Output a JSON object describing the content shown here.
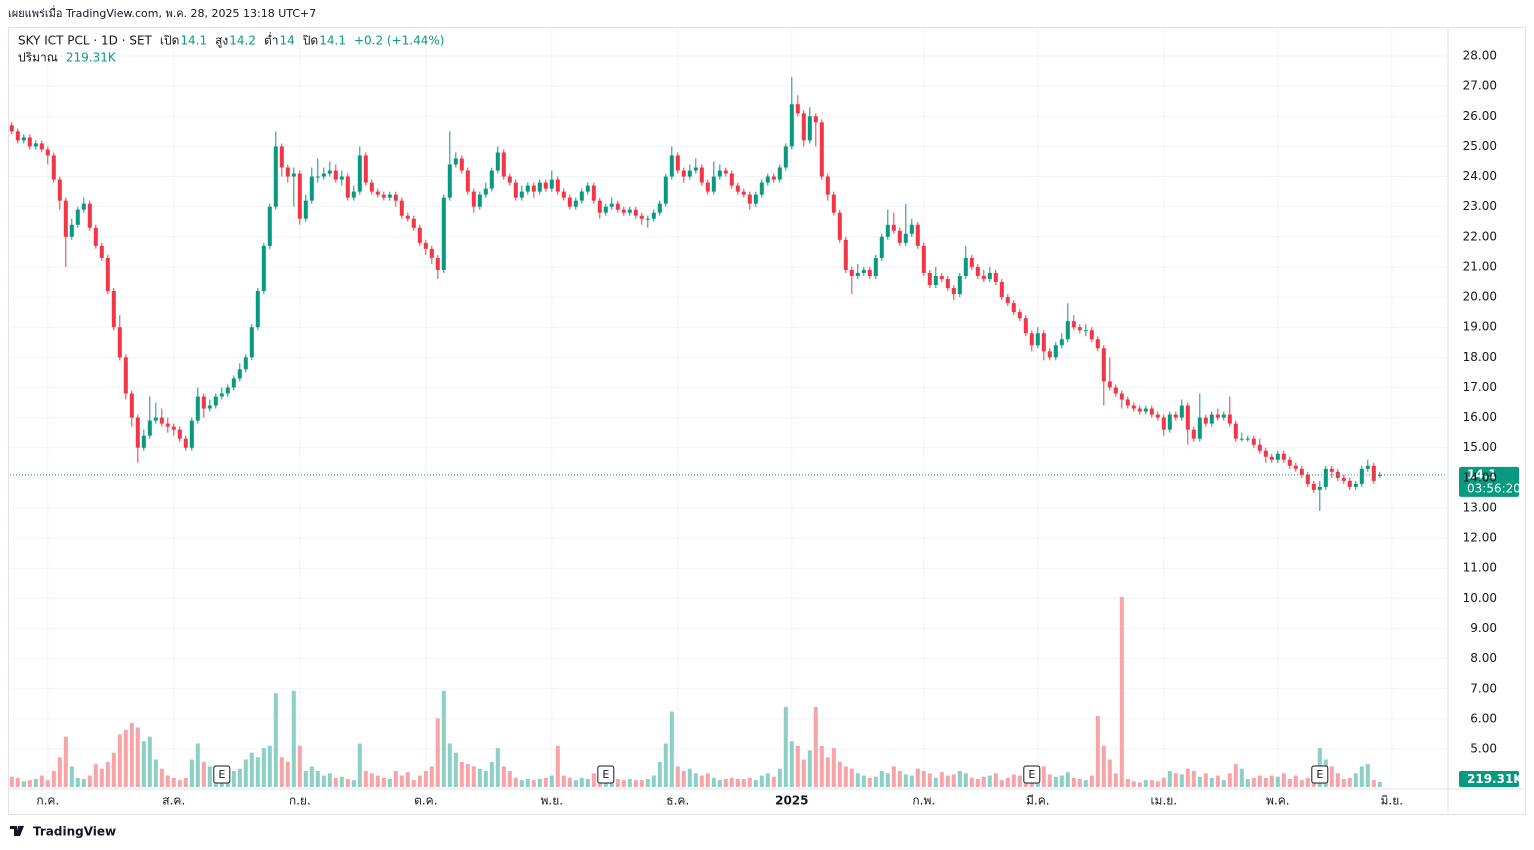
{
  "header": {
    "published": "เผยแพร่เมื่อ TradingView.com, พ.ค. 28, 2025 13:18 UTC+7"
  },
  "footer": {
    "brand": "TradingView"
  },
  "chart_data": {
    "type": "candlestick",
    "legend": {
      "symbol": "SKY ICT PCL · 1D · SET",
      "open_label": "เปิด",
      "high_label": "สูง",
      "low_label": "ต่ำ",
      "close_label": "ปิด",
      "change": "+0.2 (+1.44%)",
      "volume_label": "ปริมาณ",
      "volume_text": "219.31K"
    },
    "countdown": "03:56:20",
    "up_color": "#089981",
    "down_color": "#f23645",
    "up_volume_color": "#8ccfc4",
    "down_volume_color": "#f7a4a8",
    "grid": true,
    "xlim": [
      -0.3,
      239.2
    ],
    "xticks": [
      {
        "value": 6,
        "label": "ก.ค."
      },
      {
        "value": 27,
        "label": "ส.ค."
      },
      {
        "value": 48,
        "label": "ก.ย."
      },
      {
        "value": 69,
        "label": "ต.ค."
      },
      {
        "value": 90,
        "label": "พ.ย."
      },
      {
        "value": 111,
        "label": "ธ.ค."
      },
      {
        "value": 130,
        "label": "2025"
      },
      {
        "value": 152,
        "label": "ก.พ."
      },
      {
        "value": 171,
        "label": "มี.ค."
      },
      {
        "value": 192,
        "label": "เม.ย."
      },
      {
        "value": 211,
        "label": "พ.ค."
      },
      {
        "value": 230,
        "label": "มิ.ย."
      }
    ],
    "ylim": [
      3.74,
      28.93
    ],
    "yticks": [
      {
        "value": 5,
        "label": "5.00"
      },
      {
        "value": 6,
        "label": "6.00"
      },
      {
        "value": 7,
        "label": "7.00"
      },
      {
        "value": 8,
        "label": "8.00"
      },
      {
        "value": 9,
        "label": "9.00"
      },
      {
        "value": 10,
        "label": "10.00"
      },
      {
        "value": 11,
        "label": "11.00"
      },
      {
        "value": 12,
        "label": "12.00"
      },
      {
        "value": 13,
        "label": "13.00"
      },
      {
        "value": 14,
        "label": "14.00"
      },
      {
        "value": 15,
        "label": "15.00"
      },
      {
        "value": 16,
        "label": "16.00"
      },
      {
        "value": 17,
        "label": "17.00"
      },
      {
        "value": 18,
        "label": "18.00"
      },
      {
        "value": 19,
        "label": "19.00"
      },
      {
        "value": 20,
        "label": "20.00"
      },
      {
        "value": 21,
        "label": "21.00"
      },
      {
        "value": 22,
        "label": "22.00"
      },
      {
        "value": 23,
        "label": "23.00"
      },
      {
        "value": 24,
        "label": "24.00"
      },
      {
        "value": 25,
        "label": "25.00"
      },
      {
        "value": 26,
        "label": "26.00"
      },
      {
        "value": 27,
        "label": "27.00"
      },
      {
        "value": 28,
        "label": "28.00"
      }
    ],
    "volume_lim": [
      0,
      9000
    ],
    "events": [
      {
        "label": "E",
        "x": 35
      },
      {
        "label": "E",
        "x": 99
      },
      {
        "label": "E",
        "x": 170
      },
      {
        "label": "E",
        "x": 218
      }
    ],
    "open": [
      25.7,
      25.5,
      25.2,
      25.3,
      25.0,
      25.1,
      24.9,
      24.7,
      23.9,
      23.2,
      22.0,
      22.4,
      22.9,
      23.1,
      22.3,
      21.7,
      21.3,
      20.2,
      19.0,
      18.0,
      16.8,
      16.0,
      15.0,
      15.4,
      15.9,
      16.0,
      15.8,
      15.7,
      15.6,
      15.3,
      15.0,
      15.9,
      16.7,
      16.3,
      16.4,
      16.7,
      16.8,
      17.0,
      17.3,
      17.6,
      18.0,
      19.0,
      20.2,
      21.7,
      23.0,
      25.0,
      24.3,
      24.0,
      24.1,
      22.6,
      23.2,
      24.0,
      24.0,
      24.1,
      24.2,
      23.9,
      24.0,
      23.3,
      23.5,
      24.7,
      23.8,
      23.5,
      23.4,
      23.3,
      23.4,
      23.2,
      22.7,
      22.6,
      22.3,
      21.8,
      21.6,
      21.3,
      20.9,
      23.3,
      24.4,
      24.6,
      24.2,
      23.5,
      23.0,
      23.4,
      23.6,
      24.2,
      24.8,
      24.0,
      23.8,
      23.3,
      23.5,
      23.7,
      23.5,
      23.8,
      23.6,
      23.9,
      23.5,
      23.3,
      23.0,
      23.2,
      23.5,
      23.7,
      23.2,
      22.8,
      23.0,
      23.1,
      22.9,
      22.8,
      22.9,
      22.7,
      22.6,
      22.6,
      22.8,
      23.1,
      24.0,
      24.7,
      24.2,
      24.0,
      24.2,
      24.3,
      23.8,
      23.5,
      24.0,
      24.2,
      24.1,
      23.7,
      23.5,
      23.4,
      23.1,
      23.4,
      23.8,
      24.0,
      23.9,
      24.3,
      25.0,
      26.4,
      26.1,
      25.2,
      26.0,
      25.8,
      24.0,
      23.4,
      22.8,
      21.9,
      20.9,
      20.7,
      20.8,
      20.9,
      20.7,
      21.3,
      22.0,
      22.4,
      22.2,
      21.8,
      22.1,
      22.4,
      21.7,
      20.8,
      20.4,
      20.7,
      20.6,
      20.3,
      20.1,
      20.7,
      21.3,
      21.0,
      20.7,
      20.6,
      20.8,
      20.5,
      20.0,
      19.8,
      19.5,
      19.3,
      18.8,
      18.4,
      18.8,
      18.2,
      18.0,
      18.4,
      18.6,
      19.2,
      19.0,
      18.9,
      18.9,
      18.6,
      18.3,
      17.2,
      17.0,
      16.8,
      16.6,
      16.4,
      16.3,
      16.2,
      16.3,
      16.1,
      16.0,
      15.6,
      16.1,
      16.0,
      16.4,
      15.6,
      15.3,
      16.0,
      15.8,
      16.1,
      16.0,
      16.1,
      15.8,
      15.3,
      15.3,
      15.3,
      15.1,
      14.9,
      14.7,
      14.6,
      14.8,
      14.6,
      14.4,
      14.3,
      14.1,
      13.8,
      13.6,
      13.7,
      14.3,
      14.2,
      14.0,
      13.9,
      13.7,
      13.8,
      14.3,
      14.4,
      14.1
    ],
    "high": [
      25.8,
      25.6,
      25.4,
      25.4,
      25.2,
      25.2,
      25.0,
      24.8,
      24.0,
      23.3,
      22.6,
      23.0,
      23.3,
      23.2,
      22.4,
      21.8,
      21.4,
      20.3,
      19.4,
      18.1,
      16.9,
      16.1,
      15.6,
      16.7,
      16.5,
      16.3,
      16.0,
      15.8,
      15.7,
      15.4,
      16.0,
      17.0,
      16.8,
      16.6,
      16.8,
      17.0,
      17.1,
      17.4,
      17.8,
      18.1,
      19.1,
      20.3,
      21.8,
      23.1,
      25.5,
      25.1,
      24.4,
      24.3,
      24.2,
      23.4,
      24.3,
      24.6,
      24.3,
      24.5,
      24.4,
      24.2,
      24.1,
      23.7,
      25.0,
      24.8,
      23.9,
      23.6,
      23.5,
      23.5,
      23.5,
      23.3,
      22.8,
      22.7,
      22.4,
      21.9,
      21.7,
      21.4,
      23.4,
      25.5,
      24.8,
      24.7,
      24.3,
      23.6,
      23.5,
      23.8,
      24.3,
      25.0,
      24.9,
      24.1,
      23.9,
      23.7,
      23.8,
      23.8,
      23.9,
      23.9,
      24.2,
      24.0,
      23.6,
      23.4,
      23.3,
      23.6,
      23.8,
      23.8,
      23.3,
      23.1,
      23.3,
      23.2,
      23.0,
      23.0,
      23.0,
      22.8,
      22.7,
      22.9,
      23.2,
      24.1,
      25.0,
      24.8,
      24.3,
      24.4,
      24.6,
      24.4,
      23.9,
      24.5,
      24.4,
      24.3,
      24.2,
      23.8,
      23.6,
      23.5,
      23.5,
      23.9,
      24.1,
      24.1,
      24.4,
      25.1,
      27.3,
      26.7,
      26.2,
      26.3,
      26.1,
      25.9,
      24.1,
      23.5,
      22.9,
      22.0,
      21.0,
      21.1,
      21.0,
      21.0,
      21.4,
      22.1,
      22.9,
      22.8,
      22.3,
      23.1,
      22.6,
      22.5,
      21.8,
      20.9,
      21.0,
      20.8,
      20.7,
      20.4,
      20.8,
      21.7,
      21.4,
      21.1,
      20.9,
      21.0,
      20.9,
      20.6,
      20.1,
      19.9,
      19.6,
      19.4,
      18.9,
      19.0,
      18.9,
      18.3,
      18.5,
      18.8,
      19.8,
      19.4,
      19.1,
      19.1,
      19.0,
      18.7,
      18.4,
      18.0,
      17.1,
      16.9,
      16.7,
      16.5,
      16.4,
      16.4,
      16.4,
      16.2,
      16.1,
      16.2,
      16.2,
      16.6,
      16.5,
      15.7,
      16.8,
      16.1,
      16.2,
      16.3,
      16.2,
      16.7,
      15.9,
      15.5,
      15.4,
      15.4,
      15.3,
      15.0,
      14.8,
      14.9,
      14.9,
      14.7,
      14.5,
      14.4,
      14.2,
      13.9,
      13.9,
      14.4,
      14.4,
      14.3,
      14.1,
      14.0,
      13.9,
      14.4,
      14.6,
      14.5,
      14.2
    ],
    "low": [
      25.4,
      25.1,
      25.1,
      24.9,
      24.9,
      24.8,
      24.4,
      23.8,
      22.9,
      21.0,
      21.9,
      22.3,
      22.8,
      22.2,
      21.6,
      21.2,
      20.1,
      18.9,
      17.9,
      16.6,
      15.7,
      14.5,
      14.9,
      15.3,
      15.8,
      15.7,
      15.5,
      15.4,
      15.2,
      14.9,
      14.9,
      15.8,
      16.0,
      16.2,
      16.3,
      16.6,
      16.7,
      16.9,
      17.2,
      17.5,
      17.9,
      18.9,
      20.1,
      21.6,
      22.9,
      24.0,
      23.8,
      23.0,
      22.4,
      22.5,
      23.1,
      23.8,
      23.9,
      24.0,
      23.8,
      23.7,
      23.2,
      23.2,
      23.4,
      23.7,
      23.4,
      23.3,
      23.2,
      23.2,
      23.0,
      22.6,
      22.5,
      22.2,
      21.7,
      21.4,
      21.1,
      20.6,
      20.8,
      23.2,
      24.3,
      24.1,
      23.4,
      22.8,
      22.9,
      23.3,
      23.5,
      24.1,
      23.9,
      23.7,
      23.2,
      23.2,
      23.4,
      23.3,
      23.4,
      23.5,
      23.5,
      23.4,
      23.2,
      22.9,
      22.9,
      23.1,
      23.4,
      23.1,
      22.6,
      22.7,
      22.9,
      22.8,
      22.7,
      22.7,
      22.6,
      22.4,
      22.3,
      22.5,
      22.7,
      23.0,
      23.9,
      24.1,
      23.8,
      23.9,
      24.1,
      23.7,
      23.4,
      23.4,
      23.9,
      24.0,
      23.6,
      23.4,
      23.3,
      22.9,
      23.0,
      23.3,
      23.7,
      23.8,
      23.8,
      24.2,
      24.9,
      26.0,
      25.0,
      25.1,
      25.0,
      23.9,
      23.2,
      22.7,
      21.8,
      20.8,
      20.1,
      20.6,
      20.7,
      20.6,
      20.6,
      21.2,
      21.9,
      22.1,
      21.7,
      21.7,
      22.0,
      21.6,
      20.7,
      20.3,
      20.3,
      20.5,
      20.2,
      19.9,
      20.0,
      20.6,
      20.9,
      20.6,
      20.5,
      20.5,
      20.4,
      19.9,
      19.7,
      19.4,
      19.2,
      18.7,
      18.2,
      18.3,
      17.9,
      17.9,
      17.9,
      18.3,
      18.5,
      18.9,
      18.8,
      18.7,
      18.5,
      18.2,
      16.4,
      16.9,
      16.7,
      16.3,
      16.3,
      16.2,
      16.1,
      16.1,
      16.0,
      15.9,
      15.4,
      15.5,
      15.9,
      15.9,
      15.1,
      15.2,
      15.2,
      15.7,
      15.7,
      15.9,
      15.9,
      15.7,
      15.2,
      15.2,
      15.2,
      15.0,
      14.8,
      14.5,
      14.5,
      14.5,
      14.5,
      14.3,
      14.2,
      14.0,
      13.7,
      13.5,
      12.9,
      13.6,
      14.0,
      13.9,
      13.8,
      13.6,
      13.6,
      13.7,
      14.2,
      13.8,
      14.0
    ],
    "close": [
      25.5,
      25.2,
      25.3,
      25.0,
      25.1,
      24.9,
      24.7,
      23.9,
      23.2,
      22.0,
      22.4,
      22.9,
      23.1,
      22.3,
      21.7,
      21.3,
      20.2,
      19.0,
      18.0,
      16.8,
      16.0,
      15.0,
      15.4,
      15.9,
      16.0,
      15.8,
      15.7,
      15.6,
      15.3,
      15.0,
      15.9,
      16.7,
      16.3,
      16.4,
      16.7,
      16.8,
      17.0,
      17.3,
      17.6,
      18.0,
      19.0,
      20.2,
      21.7,
      23.0,
      25.0,
      24.3,
      24.0,
      24.1,
      22.6,
      23.2,
      24.0,
      24.0,
      24.1,
      24.2,
      23.9,
      24.0,
      23.3,
      23.5,
      24.7,
      23.8,
      23.5,
      23.4,
      23.3,
      23.4,
      23.2,
      22.7,
      22.6,
      22.3,
      21.8,
      21.6,
      21.3,
      20.9,
      23.3,
      24.4,
      24.6,
      24.2,
      23.5,
      23.0,
      23.4,
      23.6,
      24.2,
      24.8,
      24.0,
      23.8,
      23.3,
      23.5,
      23.7,
      23.5,
      23.8,
      23.6,
      23.9,
      23.5,
      23.3,
      23.0,
      23.2,
      23.5,
      23.7,
      23.2,
      22.8,
      23.0,
      23.1,
      22.9,
      22.8,
      22.9,
      22.7,
      22.6,
      22.6,
      22.8,
      23.1,
      24.0,
      24.7,
      24.2,
      24.0,
      24.2,
      24.3,
      23.8,
      23.5,
      24.0,
      24.2,
      24.1,
      23.7,
      23.5,
      23.4,
      23.1,
      23.4,
      23.8,
      24.0,
      23.9,
      24.3,
      25.0,
      26.4,
      26.1,
      25.2,
      26.0,
      25.8,
      24.0,
      23.4,
      22.8,
      21.9,
      20.9,
      20.7,
      20.8,
      20.9,
      20.7,
      21.3,
      22.0,
      22.4,
      22.2,
      21.8,
      22.1,
      22.4,
      21.7,
      20.8,
      20.4,
      20.7,
      20.6,
      20.3,
      20.1,
      20.7,
      21.3,
      21.0,
      20.7,
      20.6,
      20.8,
      20.5,
      20.0,
      19.8,
      19.5,
      19.3,
      18.8,
      18.4,
      18.8,
      18.2,
      18.0,
      18.4,
      18.6,
      19.2,
      19.0,
      18.9,
      18.9,
      18.6,
      18.3,
      17.2,
      17.0,
      16.8,
      16.6,
      16.4,
      16.3,
      16.2,
      16.3,
      16.1,
      16.0,
      15.6,
      16.1,
      16.0,
      16.4,
      15.6,
      15.3,
      16.0,
      15.8,
      16.1,
      16.0,
      16.1,
      15.8,
      15.3,
      15.3,
      15.3,
      15.1,
      14.9,
      14.7,
      14.6,
      14.8,
      14.6,
      14.4,
      14.3,
      14.1,
      13.8,
      13.6,
      13.7,
      14.3,
      14.2,
      14.0,
      13.9,
      13.7,
      13.8,
      14.3,
      14.4,
      13.9,
      14.1
    ],
    "volume": [
      450,
      400,
      250,
      300,
      350,
      500,
      300,
      700,
      1300,
      2200,
      900,
      400,
      350,
      500,
      1000,
      800,
      1100,
      1500,
      2300,
      2500,
      2800,
      2600,
      2000,
      2200,
      1200,
      800,
      500,
      400,
      300,
      400,
      1200,
      1900,
      1100,
      900,
      400,
      300,
      500,
      700,
      800,
      1200,
      1500,
      1300,
      1700,
      1800,
      4100,
      1300,
      1100,
      4200,
      1800,
      700,
      900,
      700,
      500,
      600,
      400,
      450,
      350,
      300,
      1900,
      700,
      600,
      500,
      400,
      350,
      700,
      500,
      650,
      300,
      500,
      700,
      900,
      3000,
      4200,
      1900,
      1500,
      1100,
      1000,
      900,
      800,
      700,
      1100,
      1700,
      900,
      700,
      400,
      300,
      350,
      300,
      350,
      400,
      500,
      1800,
      500,
      400,
      300,
      400,
      350,
      600,
      450,
      400,
      400,
      350,
      300,
      350,
      300,
      300,
      350,
      500,
      1100,
      1900,
      3300,
      900,
      700,
      800,
      600,
      500,
      600,
      400,
      300,
      350,
      400,
      350,
      350,
      400,
      300,
      500,
      600,
      450,
      800,
      3500,
      2000,
      1800,
      1200,
      1600,
      3500,
      1800,
      1300,
      1700,
      1100,
      900,
      800,
      600,
      500,
      400,
      450,
      700,
      600,
      900,
      700,
      550,
      500,
      800,
      700,
      600,
      400,
      650,
      500,
      550,
      700,
      600,
      400,
      350,
      450,
      500,
      600,
      300,
      400,
      550,
      500,
      600,
      700,
      500,
      900,
      550,
      450,
      500,
      650,
      400,
      350,
      300,
      500,
      3100,
      1800,
      1200,
      600,
      8300,
      350,
      250,
      200,
      300,
      300,
      250,
      400,
      700,
      600,
      550,
      800,
      700,
      450,
      600,
      400,
      500,
      300,
      600,
      1000,
      800,
      350,
      400,
      500,
      400,
      500,
      450,
      600,
      350,
      500,
      300,
      400,
      700,
      1700,
      1200,
      900,
      600,
      350,
      400,
      600,
      900,
      1000,
      300,
      219.31
    ]
  }
}
